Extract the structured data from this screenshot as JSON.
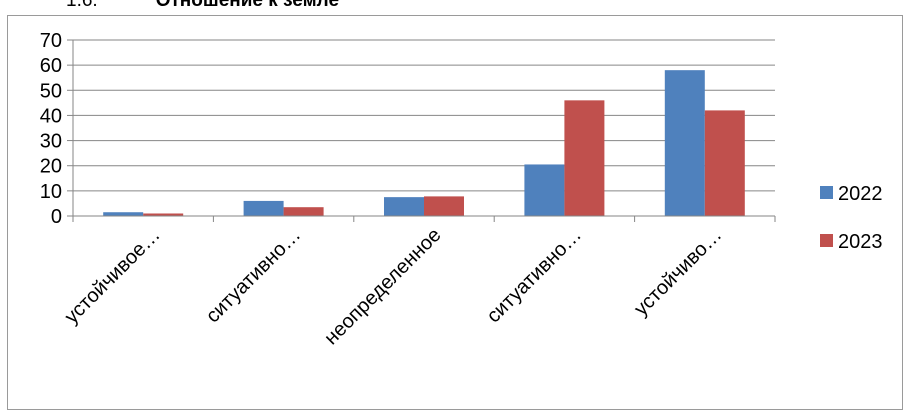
{
  "heading": {
    "number": "1.6.",
    "text": "Отношение к земле"
  },
  "colors": {
    "s2022": "#4F81BD",
    "s2023": "#C0504D",
    "grid": "#868686"
  },
  "chart_data": {
    "type": "bar",
    "title": "",
    "xlabel": "",
    "ylabel": "",
    "ylim": [
      0,
      70
    ],
    "yticks": [
      0,
      10,
      20,
      30,
      40,
      50,
      60,
      70
    ],
    "categories": [
      "устойчивое…",
      "ситуативно…",
      "неопределенное",
      "ситуативно…",
      "устойчиво…"
    ],
    "series": [
      {
        "name": "2022",
        "values": [
          1.5,
          6,
          7.5,
          20.5,
          58
        ]
      },
      {
        "name": "2023",
        "values": [
          1,
          3.5,
          7.8,
          46,
          42
        ]
      }
    ],
    "legend": "right",
    "grid": true
  }
}
